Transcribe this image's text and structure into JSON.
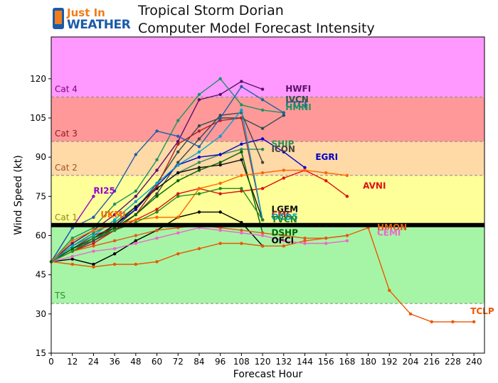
{
  "logo": {
    "line1": "Just In",
    "line2": "WEATHER"
  },
  "chart_data": {
    "type": "line",
    "title": "Tropical Storm Dorian",
    "subtitle": "Computer Model Forecast Intensity",
    "xlabel": "Forecast Hour",
    "ylabel": "Wind Speed (kt)",
    "xlim": [
      0,
      246
    ],
    "ylim": [
      15,
      136
    ],
    "xticks": [
      0,
      12,
      24,
      36,
      48,
      60,
      72,
      84,
      96,
      108,
      120,
      132,
      144,
      156,
      168,
      180,
      192,
      204,
      216,
      228,
      240
    ],
    "yticks": [
      15,
      30,
      45,
      60,
      75,
      90,
      105,
      120
    ],
    "grid": false,
    "categories": [
      {
        "name": "TS",
        "from": 34,
        "to": 64,
        "color": "#a6f5a6"
      },
      {
        "name": "Cat 1",
        "from": 64,
        "to": 83,
        "color": "#ffff99"
      },
      {
        "name": "Cat 2",
        "from": 83,
        "to": 96,
        "color": "#ffd9a6"
      },
      {
        "name": "Cat 3",
        "from": 96,
        "to": 113,
        "color": "#ff9999"
      },
      {
        "name": "Cat 4",
        "from": 113,
        "to": 136,
        "color": "#ff99ff"
      }
    ],
    "category_label_colors": {
      "TS": "#2e8b2e",
      "Cat 1": "#8a8a1a",
      "Cat 2": "#a0522d",
      "Cat 3": "#8b1a1a",
      "Cat 4": "#800080"
    },
    "hurricane_line": 64,
    "series": [
      {
        "name": "RI25",
        "color": "#9400d3",
        "x": [
          0,
          12,
          24
        ],
        "y": [
          50,
          63,
          75
        ]
      },
      {
        "name": "HWFI",
        "color": "#5b0f6e",
        "x": [
          0,
          12,
          24,
          36,
          48,
          60,
          72,
          84,
          96,
          108,
          120
        ],
        "y": [
          50,
          57,
          62,
          68,
          75,
          85,
          96,
          112,
          114,
          119,
          116
        ]
      },
      {
        "name": "IVCN",
        "color": "#2f4f4f",
        "x": [
          0,
          12,
          24,
          36,
          48,
          60,
          72,
          84,
          96,
          108,
          120,
          132
        ],
        "y": [
          50,
          55,
          58,
          63,
          70,
          80,
          92,
          102,
          105,
          105,
          101,
          106
        ]
      },
      {
        "name": "HMNI",
        "color": "#1a9460",
        "x": [
          0,
          12,
          24,
          36,
          48,
          60,
          72,
          84,
          96,
          108,
          120,
          132
        ],
        "y": [
          50,
          59,
          63,
          72,
          77,
          89,
          104,
          114,
          120,
          110,
          108,
          107
        ]
      },
      {
        "name": "SHIP",
        "color": "#2e8b57",
        "x": [
          0,
          12,
          24,
          36,
          48,
          60,
          72,
          84,
          96,
          108,
          120
        ],
        "y": [
          50,
          56,
          61,
          65,
          71,
          78,
          84,
          88,
          91,
          93,
          93
        ]
      },
      {
        "name": "ICON",
        "color": "#444444",
        "x": [
          0,
          12,
          24,
          36,
          48,
          60,
          72,
          84,
          96,
          108,
          120
        ],
        "y": [
          50,
          54,
          58,
          62,
          68,
          76,
          88,
          97,
          106,
          107,
          88
        ]
      },
      {
        "name": "EGRI",
        "color": "#0000cc",
        "x": [
          0,
          12,
          24,
          36,
          48,
          60,
          72,
          84,
          96,
          108,
          120,
          132,
          144
        ],
        "y": [
          50,
          55,
          59,
          64,
          70,
          79,
          87,
          90,
          91,
          95,
          97,
          92,
          86
        ]
      },
      {
        "name": "AVNI",
        "color": "#dd1111",
        "x": [
          0,
          12,
          24,
          36,
          48,
          60,
          72,
          84,
          96,
          108,
          120,
          132,
          144,
          156,
          168
        ],
        "y": [
          50,
          54,
          57,
          62,
          66,
          70,
          76,
          78,
          76,
          77,
          78,
          82,
          85,
          81,
          75
        ]
      },
      {
        "name": "LGEM",
        "color": "#111111",
        "x": [
          0,
          12,
          24,
          36,
          48,
          60,
          72,
          84,
          96,
          108,
          120
        ],
        "y": [
          50,
          55,
          59,
          64,
          71,
          78,
          84,
          86,
          87,
          89,
          66
        ]
      },
      {
        "name": "CMC",
        "color": "#b22222",
        "x": [
          0,
          12,
          24,
          36,
          48,
          60,
          72,
          84,
          96,
          108,
          120
        ],
        "y": [
          50,
          55,
          60,
          63,
          68,
          79,
          95,
          100,
          104,
          105,
          66
        ]
      },
      {
        "name": "OFCI",
        "color": "#000000",
        "x": [
          0,
          12,
          24,
          36,
          48,
          60,
          72,
          84,
          96,
          108,
          120
        ],
        "y": [
          50,
          51,
          49,
          53,
          58,
          62,
          67,
          69,
          69,
          65,
          56
        ]
      },
      {
        "name": "DSHP",
        "color": "#006400",
        "x": [
          0,
          12,
          24,
          36,
          48,
          60,
          72,
          84,
          96,
          108,
          120
        ],
        "y": [
          50,
          55,
          59,
          63,
          68,
          75,
          81,
          85,
          88,
          92,
          61
        ]
      },
      {
        "name": "OCD5",
        "color": "#00a0d0",
        "x": [
          0,
          12,
          24,
          36,
          48,
          60,
          72,
          84,
          96,
          108,
          120
        ],
        "y": [
          50,
          56,
          60,
          66,
          73,
          80,
          87,
          92,
          98,
          108,
          66
        ]
      },
      {
        "name": "CTCI",
        "color": "#1f5fa8",
        "x": [
          0,
          12,
          24,
          36,
          48,
          60,
          72,
          84,
          96,
          108,
          120,
          132
        ],
        "y": [
          50,
          63,
          67,
          77,
          91,
          100,
          98,
          94,
          105,
          117,
          112,
          107
        ]
      },
      {
        "name": "UKMI",
        "color": "#ff6600",
        "x": [
          0,
          12,
          24,
          36,
          48,
          60,
          72,
          84,
          96,
          108,
          120,
          132,
          144,
          156,
          168
        ],
        "y": [
          50,
          58,
          62,
          64,
          66,
          67,
          67,
          78,
          80,
          83,
          84,
          85,
          85,
          84,
          83
        ]
      },
      {
        "name": "TCLP",
        "color": "#ee5500",
        "x": [
          0,
          12,
          24,
          36,
          48,
          60,
          72,
          84,
          96,
          108,
          120,
          132,
          144,
          156,
          168,
          180,
          192,
          204,
          216,
          228,
          240
        ],
        "y": [
          50,
          49,
          48,
          49,
          49,
          50,
          53,
          55,
          57,
          57,
          56,
          56,
          58,
          59,
          60,
          63,
          39,
          30,
          27,
          27,
          27
        ]
      },
      {
        "name": "HMON",
        "color": "#e25a15",
        "x": [
          0,
          12,
          24,
          36,
          48,
          60,
          72,
          84,
          96,
          108,
          120,
          132,
          144,
          156,
          168
        ],
        "y": [
          50,
          54,
          56,
          58,
          60,
          62,
          63,
          64,
          63,
          62,
          61,
          60,
          59,
          59,
          60
        ]
      },
      {
        "name": "CEMI",
        "color": "#ee66cc",
        "x": [
          0,
          12,
          24,
          36,
          48,
          60,
          72,
          84,
          96,
          108,
          120,
          132,
          144,
          156,
          168
        ],
        "y": [
          50,
          52,
          54,
          55,
          57,
          59,
          61,
          63,
          62,
          61,
          60,
          58,
          57,
          57,
          58
        ]
      },
      {
        "name": "TVCN",
        "color": "#228b22",
        "x": [
          0,
          12,
          24,
          36,
          48,
          60,
          72,
          84,
          96,
          108,
          120
        ],
        "y": [
          50,
          54,
          59,
          62,
          65,
          69,
          75,
          76,
          78,
          78,
          66
        ]
      }
    ],
    "annotations": [
      {
        "text": "RI25",
        "x": 24,
        "y": 76,
        "color": "#9400d3"
      },
      {
        "text": "HWFI",
        "x": 133,
        "y": 115,
        "color": "#5b0f6e"
      },
      {
        "text": "IVCN",
        "x": 133,
        "y": 111,
        "color": "#2f4f4f"
      },
      {
        "text": "CTCI",
        "x": 133,
        "y": 109,
        "color": "#1f5fa8"
      },
      {
        "text": "HMNI",
        "x": 133,
        "y": 108,
        "color": "#1a9460"
      },
      {
        "text": "SHIP",
        "x": 125,
        "y": 94,
        "color": "#2e8b57"
      },
      {
        "text": "ICON",
        "x": 125,
        "y": 92,
        "color": "#444444"
      },
      {
        "text": "EGRI",
        "x": 150,
        "y": 89,
        "color": "#0000cc"
      },
      {
        "text": "AVNI",
        "x": 177,
        "y": 78,
        "color": "#dd1111"
      },
      {
        "text": "LGEM",
        "x": 125,
        "y": 69,
        "color": "#111111"
      },
      {
        "text": "CMC",
        "x": 125,
        "y": 67,
        "color": "#b22222"
      },
      {
        "text": "OCD5",
        "x": 125,
        "y": 66,
        "color": "#00a0d0"
      },
      {
        "text": "TVCN",
        "x": 125,
        "y": 65,
        "color": "#228b22"
      },
      {
        "text": "DSHP",
        "x": 125,
        "y": 60,
        "color": "#006400"
      },
      {
        "text": "OFCI",
        "x": 125,
        "y": 57,
        "color": "#000000"
      },
      {
        "text": "UKMI",
        "x": 28,
        "y": 67,
        "color": "#ff6600"
      },
      {
        "text": "HMON",
        "x": 185,
        "y": 62,
        "color": "#e25a15"
      },
      {
        "text": "CEMI",
        "x": 185,
        "y": 60,
        "color": "#ee66cc"
      },
      {
        "text": "TCLP",
        "x": 238,
        "y": 30,
        "color": "#ee5500"
      }
    ]
  }
}
